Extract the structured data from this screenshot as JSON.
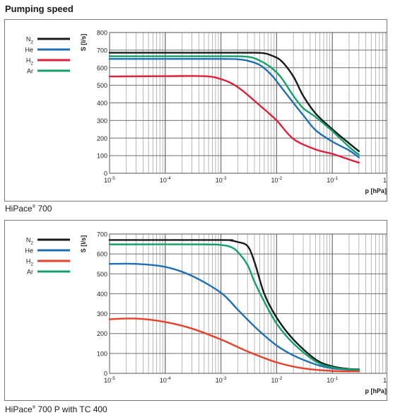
{
  "page_title": "Pumping speed",
  "captions": [
    {
      "brand": "HiPace",
      "mark": "®",
      "rest": " 700"
    },
    {
      "brand": "HiPace",
      "mark": "®",
      "rest": " 700 P with TC 400"
    }
  ],
  "colors": {
    "N2": "#1a1a1a",
    "He": "#1f6fb5",
    "H2": "#e0203a",
    "Ar": "#13a06a",
    "H2_chart2": "#e8402a",
    "grid": "#9a9a9a"
  },
  "chart_data": [
    {
      "type": "line",
      "ylabel": "S [l/s]",
      "xlabel": "p [hPa]",
      "x_scale": "log",
      "xlim": [
        1e-05,
        1
      ],
      "ylim": [
        0,
        800
      ],
      "yticks": [
        "0",
        "100",
        "200",
        "300",
        "400",
        "500",
        "600",
        "700",
        "800"
      ],
      "xticks": [
        {
          "base": "10",
          "exp": "-5"
        },
        {
          "base": "10",
          "exp": "-4"
        },
        {
          "base": "10",
          "exp": "-3"
        },
        {
          "base": "10",
          "exp": "-2"
        },
        {
          "base": "10",
          "exp": "-1"
        },
        {
          "base": "10",
          "exp": "0"
        }
      ],
      "grid": true,
      "legend_position": "left",
      "series": [
        {
          "name": "N2",
          "sub": "2",
          "base": "N",
          "color": "#1a1a1a",
          "x": [
            1e-05,
            0.001,
            0.004,
            0.006,
            0.008,
            0.012,
            0.02,
            0.03,
            0.05,
            0.1,
            0.2,
            0.3
          ],
          "y": [
            685,
            685,
            685,
            682,
            670,
            640,
            550,
            440,
            340,
            250,
            170,
            125
          ]
        },
        {
          "name": "He",
          "base": "He",
          "color": "#1f6fb5",
          "x": [
            1e-05,
            0.001,
            0.002,
            0.003,
            0.005,
            0.008,
            0.012,
            0.02,
            0.03,
            0.05,
            0.1,
            0.2,
            0.3
          ],
          "y": [
            650,
            650,
            648,
            640,
            615,
            560,
            490,
            400,
            330,
            245,
            180,
            130,
            90
          ]
        },
        {
          "name": "H2",
          "sub": "2",
          "base": "H",
          "color": "#e0203a",
          "x": [
            1e-05,
            0.0001,
            0.0005,
            0.001,
            0.002,
            0.005,
            0.01,
            0.02,
            0.05,
            0.1,
            0.2,
            0.3
          ],
          "y": [
            550,
            552,
            552,
            535,
            490,
            385,
            300,
            195,
            135,
            110,
            78,
            60
          ]
        },
        {
          "name": "Ar",
          "base": "Ar",
          "color": "#13a06a",
          "x": [
            1e-05,
            0.001,
            0.003,
            0.005,
            0.008,
            0.012,
            0.02,
            0.03,
            0.05,
            0.1,
            0.2,
            0.3
          ],
          "y": [
            665,
            665,
            662,
            640,
            600,
            545,
            440,
            370,
            320,
            240,
            150,
            105
          ]
        }
      ]
    },
    {
      "type": "line",
      "ylabel": "S [l/s]",
      "xlabel": "p [hPa]",
      "x_scale": "log",
      "xlim": [
        1e-05,
        1
      ],
      "ylim": [
        0,
        700
      ],
      "yticks": [
        "0",
        "100",
        "200",
        "300",
        "400",
        "500",
        "600",
        "700"
      ],
      "xticks": [
        {
          "base": "10",
          "exp": "-5"
        },
        {
          "base": "10",
          "exp": "-4"
        },
        {
          "base": "10",
          "exp": "-3"
        },
        {
          "base": "10",
          "exp": "-2"
        },
        {
          "base": "10",
          "exp": "-1"
        },
        {
          "base": "10",
          "exp": "0"
        }
      ],
      "grid": true,
      "legend_position": "left",
      "series": [
        {
          "name": "N2",
          "sub": "2",
          "base": "N",
          "color": "#1a1a1a",
          "x": [
            1e-05,
            0.001,
            0.0015,
            0.002,
            0.003,
            0.004,
            0.006,
            0.01,
            0.02,
            0.05,
            0.1,
            0.2,
            0.3
          ],
          "y": [
            670,
            670,
            668,
            660,
            640,
            560,
            400,
            280,
            170,
            70,
            35,
            22,
            20
          ]
        },
        {
          "name": "He",
          "base": "He",
          "color": "#1f6fb5",
          "x": [
            1e-05,
            3e-05,
            0.0001,
            0.0003,
            0.001,
            0.002,
            0.003,
            0.005,
            0.01,
            0.02,
            0.05,
            0.1,
            0.2,
            0.3
          ],
          "y": [
            550,
            550,
            535,
            490,
            405,
            320,
            270,
            210,
            140,
            90,
            45,
            25,
            18,
            15
          ]
        },
        {
          "name": "H2",
          "sub": "2",
          "base": "H",
          "color": "#e8402a",
          "x": [
            1e-05,
            3e-05,
            0.0001,
            0.0003,
            0.001,
            0.003,
            0.01,
            0.03,
            0.1,
            0.3
          ],
          "y": [
            272,
            275,
            258,
            225,
            170,
            110,
            55,
            25,
            12,
            10
          ]
        },
        {
          "name": "Ar",
          "base": "Ar",
          "color": "#13a06a",
          "x": [
            1e-05,
            0.0005,
            0.001,
            0.0015,
            0.002,
            0.003,
            0.004,
            0.006,
            0.01,
            0.02,
            0.05,
            0.1,
            0.2,
            0.3
          ],
          "y": [
            648,
            648,
            645,
            635,
            610,
            545,
            460,
            360,
            250,
            150,
            60,
            30,
            20,
            18
          ]
        }
      ]
    }
  ]
}
